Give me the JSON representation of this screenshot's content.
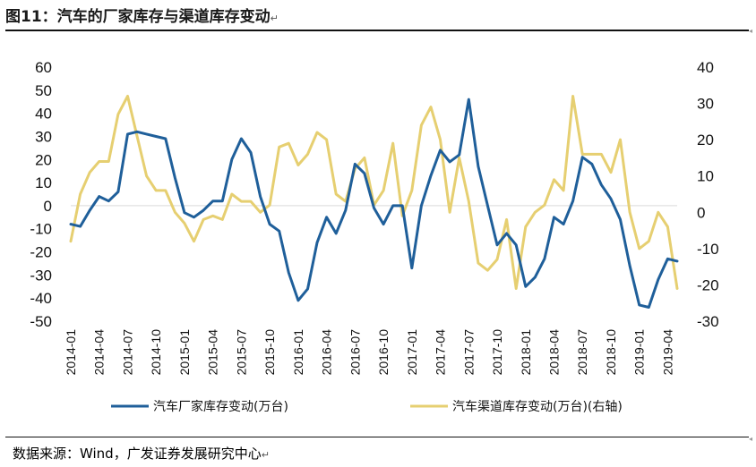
{
  "figure": {
    "title": "图11：汽车的厂家库存与渠道库存变动",
    "source": "数据来源：Wind，广发证券发展研究中心"
  },
  "chart_data": {
    "type": "line",
    "title": "汽车的厂家库存与渠道库存变动",
    "x": [
      "2014-01",
      "2014-02",
      "2014-03",
      "2014-04",
      "2014-05",
      "2014-06",
      "2014-07",
      "2014-08",
      "2014-09",
      "2014-10",
      "2014-11",
      "2014-12",
      "2015-01",
      "2015-02",
      "2015-03",
      "2015-04",
      "2015-05",
      "2015-06",
      "2015-07",
      "2015-08",
      "2015-09",
      "2015-10",
      "2015-11",
      "2015-12",
      "2016-01",
      "2016-02",
      "2016-03",
      "2016-04",
      "2016-05",
      "2016-06",
      "2016-07",
      "2016-08",
      "2016-09",
      "2016-10",
      "2016-11",
      "2016-12",
      "2017-01",
      "2017-02",
      "2017-03",
      "2017-04",
      "2017-05",
      "2017-06",
      "2017-07",
      "2017-08",
      "2017-09",
      "2017-10",
      "2017-11",
      "2017-12",
      "2018-01",
      "2018-02",
      "2018-03",
      "2018-04",
      "2018-05",
      "2018-06",
      "2018-07",
      "2018-08",
      "2018-09",
      "2018-10",
      "2018-11",
      "2018-12",
      "2019-01",
      "2019-02",
      "2019-03",
      "2019-04",
      "2019-05"
    ],
    "x_tick_labels": [
      "2014-01",
      "2014-04",
      "2014-07",
      "2014-10",
      "2015-01",
      "2015-04",
      "2015-07",
      "2015-10",
      "2016-01",
      "2016-04",
      "2016-07",
      "2016-10",
      "2017-01",
      "2017-04",
      "2017-07",
      "2017-10",
      "2018-01",
      "2018-04",
      "2018-07",
      "2018-10",
      "2019-01",
      "2019-04"
    ],
    "y_left": {
      "ticks": [
        60,
        50,
        40,
        30,
        20,
        10,
        0,
        -10,
        -20,
        -30,
        -40,
        -50
      ],
      "range": [
        -50,
        60
      ]
    },
    "y_right": {
      "ticks": [
        40,
        30,
        20,
        10,
        0,
        -10,
        -20,
        -30
      ],
      "range": [
        -30,
        40
      ]
    },
    "legend_position": "bottom",
    "gridlines": false,
    "series": [
      {
        "name": "汽车厂家库存变动(万台)",
        "axis": "left",
        "color": "#1f5f9a",
        "values": [
          -8,
          -9,
          -2,
          4,
          2,
          6,
          31,
          32,
          31,
          30,
          29,
          12,
          -3,
          -5,
          -2,
          2,
          2,
          20,
          29,
          23,
          4,
          -8,
          -11,
          -29,
          -41,
          -36,
          -16,
          -5,
          -12,
          -2,
          18,
          14,
          -1,
          -8,
          0,
          0,
          -27,
          0,
          13,
          24,
          19,
          22,
          46,
          17,
          0,
          -17,
          -12,
          -17,
          -35,
          -31,
          -23,
          -5,
          -8,
          2,
          21,
          18,
          9,
          3,
          -6,
          -26,
          -43,
          -44,
          -32,
          -23,
          -24
        ]
      },
      {
        "name": "汽车渠道库存变动(万台)(右轴)",
        "axis": "right",
        "color": "#e6cf71",
        "values": [
          -8,
          5,
          11,
          14,
          14,
          27,
          32,
          21,
          10,
          6,
          6,
          0,
          -3,
          -8,
          -2,
          -1,
          -2,
          5,
          3,
          3,
          0,
          2,
          18,
          19,
          13,
          16,
          22,
          20,
          5,
          3,
          12,
          15,
          2,
          6,
          19,
          -1,
          6,
          24,
          29,
          20,
          0,
          15,
          3,
          -14,
          -16,
          -13,
          -2,
          -21,
          -4,
          0,
          2,
          9,
          6,
          32,
          16,
          16,
          16,
          11,
          20,
          0,
          -10,
          -8,
          0,
          -4,
          -21
        ]
      }
    ]
  }
}
